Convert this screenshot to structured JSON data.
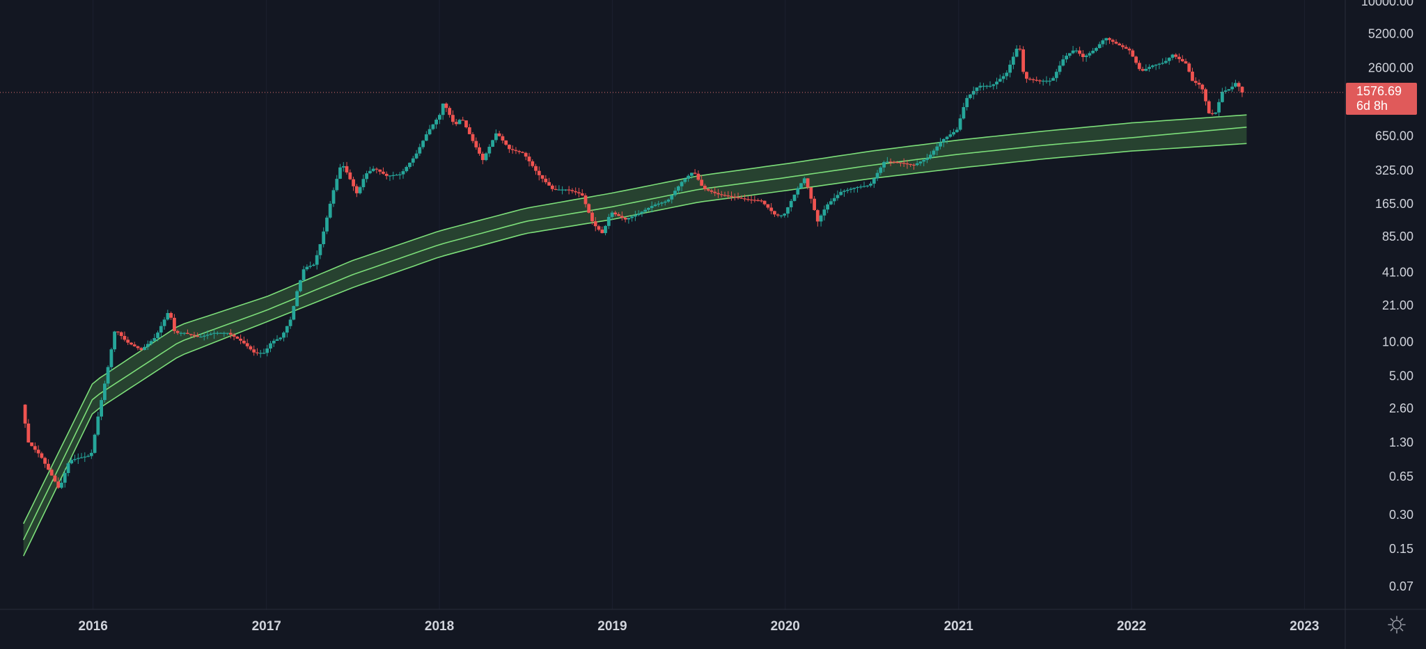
{
  "chart_data": {
    "type": "candlestick",
    "y_scale": "log",
    "ylim": [
      0.05,
      10000
    ],
    "xlim": [
      "2015-07-01",
      "2023-03-31"
    ],
    "y_ticks": [
      "10000.00",
      "5200.00",
      "2600.00",
      "650.00",
      "325.00",
      "165.00",
      "85.00",
      "41.00",
      "21.00",
      "10.00",
      "5.00",
      "2.60",
      "1.30",
      "0.65",
      "0.30",
      "0.15",
      "0.07"
    ],
    "x_ticks": [
      "2016",
      "2017",
      "2018",
      "2019",
      "2020",
      "2021",
      "2022",
      "2023"
    ],
    "last_price": "1576.69",
    "countdown": "6d 8h",
    "last_price_line": 1576.69,
    "colors": {
      "background": "#131722",
      "up": "#26a69a",
      "down": "#ef5350",
      "band_fill": "#2b4a33",
      "band_line": "#7ddf7a",
      "price_line": "#e57373",
      "axis_text": "#d1d4dc"
    },
    "band": {
      "dates": [
        "2015-08-07",
        "2016-01-01",
        "2016-07-01",
        "2017-01-01",
        "2017-07-01",
        "2018-01-01",
        "2018-07-01",
        "2019-01-01",
        "2019-07-01",
        "2020-01-01",
        "2020-07-01",
        "2021-01-01",
        "2021-07-01",
        "2022-01-01",
        "2022-09-01"
      ],
      "upper": [
        0.25,
        4.4,
        14,
        25,
        52,
        95,
        150,
        205,
        290,
        370,
        480,
        600,
        720,
        850,
        1000
      ],
      "middle": [
        0.18,
        3.2,
        10,
        19,
        39,
        72,
        115,
        155,
        220,
        280,
        360,
        450,
        540,
        630,
        780
      ],
      "lower": [
        0.13,
        2.4,
        7.5,
        15,
        30,
        56,
        90,
        120,
        170,
        215,
        275,
        340,
        410,
        480,
        560
      ]
    },
    "price_path": {
      "dates": [
        "2015-08-07",
        "2015-08-21",
        "2015-09-15",
        "2015-10-15",
        "2015-10-25",
        "2015-11-15",
        "2015-12-05",
        "2015-12-31",
        "2016-01-15",
        "2016-02-05",
        "2016-02-20",
        "2016-03-15",
        "2016-04-15",
        "2016-05-15",
        "2016-06-13",
        "2016-06-25",
        "2016-07-15",
        "2016-08-15",
        "2016-09-15",
        "2016-10-15",
        "2016-11-15",
        "2016-12-10",
        "2016-12-31",
        "2017-01-15",
        "2017-02-05",
        "2017-02-25",
        "2017-03-10",
        "2017-03-25",
        "2017-04-15",
        "2017-05-01",
        "2017-05-25",
        "2017-06-12",
        "2017-06-25",
        "2017-07-15",
        "2017-08-01",
        "2017-08-20",
        "2017-09-15",
        "2017-10-15",
        "2017-11-15",
        "2017-12-10",
        "2018-01-05",
        "2018-01-13",
        "2018-02-06",
        "2018-02-20",
        "2018-03-15",
        "2018-04-06",
        "2018-05-05",
        "2018-06-01",
        "2018-07-01",
        "2018-08-01",
        "2018-09-01",
        "2018-10-01",
        "2018-11-01",
        "2018-11-25",
        "2018-12-15",
        "2019-01-01",
        "2019-02-01",
        "2019-03-01",
        "2019-04-01",
        "2019-05-01",
        "2019-06-01",
        "2019-06-25",
        "2019-07-15",
        "2019-08-15",
        "2019-09-15",
        "2019-10-15",
        "2019-11-15",
        "2019-12-15",
        "2020-01-01",
        "2020-02-01",
        "2020-02-15",
        "2020-03-13",
        "2020-04-01",
        "2020-05-01",
        "2020-06-01",
        "2020-07-01",
        "2020-08-01",
        "2020-09-01",
        "2020-10-01",
        "2020-11-01",
        "2020-12-01",
        "2021-01-01",
        "2021-01-20",
        "2021-02-15",
        "2021-03-15",
        "2021-04-15",
        "2021-05-12",
        "2021-05-23",
        "2021-06-22",
        "2021-07-20",
        "2021-08-15",
        "2021-09-07",
        "2021-09-25",
        "2021-10-20",
        "2021-11-10",
        "2021-12-05",
        "2021-12-31",
        "2022-01-24",
        "2022-02-15",
        "2022-03-15",
        "2022-04-01",
        "2022-05-01",
        "2022-05-12",
        "2022-06-01",
        "2022-06-18",
        "2022-07-01",
        "2022-07-15",
        "2022-08-01",
        "2022-08-14",
        "2022-08-25"
      ],
      "values": [
        2.8,
        1.3,
        1.0,
        0.6,
        0.5,
        0.9,
        0.95,
        1.0,
        2.2,
        6.0,
        13,
        10,
        8.5,
        11,
        19,
        12,
        12,
        11,
        12,
        12,
        10,
        8.0,
        8.0,
        10,
        11,
        16,
        28,
        45,
        48,
        80,
        210,
        380,
        300,
        200,
        300,
        340,
        290,
        300,
        440,
        700,
        1000,
        1300,
        800,
        950,
        600,
        400,
        700,
        500,
        460,
        300,
        220,
        220,
        200,
        110,
        90,
        140,
        120,
        135,
        160,
        175,
        260,
        320,
        225,
        200,
        190,
        180,
        175,
        130,
        130,
        230,
        280,
        115,
        160,
        210,
        230,
        240,
        390,
        380,
        360,
        420,
        600,
        740,
        1380,
        1800,
        1800,
        2300,
        4300,
        2100,
        2000,
        2000,
        3200,
        3800,
        3200,
        3800,
        4800,
        4200,
        3700,
        2400,
        2700,
        2900,
        3400,
        2800,
        2000,
        1800,
        1000,
        1050,
        1600,
        1700,
        1950,
        1576.69
      ]
    }
  }
}
